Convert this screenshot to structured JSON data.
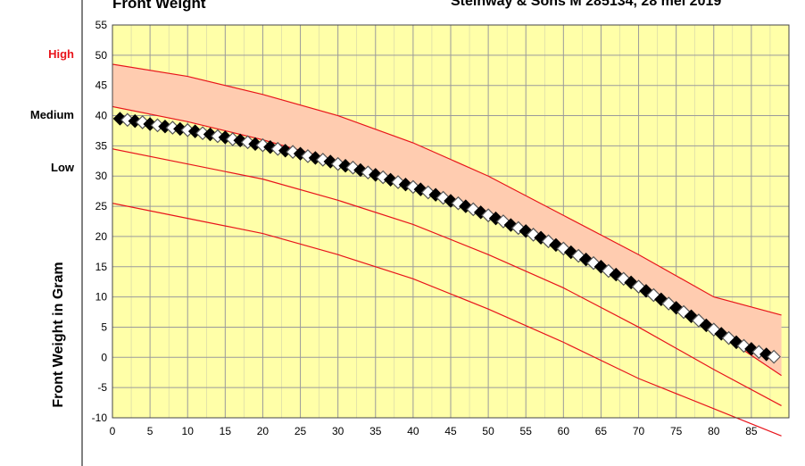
{
  "chart_data": {
    "type": "scatter",
    "title": "Front Weight",
    "subtitle": "Steinway & Sons M 285134, 28 mei 2019",
    "ylabel": "Front Weight in Gram",
    "xlabel": "",
    "xlim": [
      0,
      90
    ],
    "ylim": [
      -10,
      55
    ],
    "x_ticks": [
      0,
      5,
      10,
      15,
      20,
      25,
      30,
      35,
      40,
      45,
      50,
      55,
      60,
      65,
      70,
      75,
      80,
      85
    ],
    "y_ticks": [
      55,
      50,
      45,
      40,
      35,
      30,
      25,
      20,
      15,
      10,
      5,
      0,
      -5,
      -10
    ],
    "grid": true,
    "level_labels": [
      {
        "text": "High",
        "y": 50,
        "color": "#e8141b"
      },
      {
        "text": "Medium",
        "y": 40,
        "color": "#000000"
      },
      {
        "text": "Low",
        "y": 30,
        "color": "#000000"
      }
    ],
    "reference_curves": [
      {
        "name": "upper",
        "x": [
          0,
          10,
          20,
          30,
          40,
          50,
          60,
          70,
          80,
          89
        ],
        "y": [
          48.5,
          46.5,
          43.5,
          40,
          35.5,
          30,
          23.5,
          17,
          10,
          7
        ]
      },
      {
        "name": "medium",
        "x": [
          0,
          10,
          20,
          30,
          40,
          50,
          60,
          70,
          80,
          89
        ],
        "y": [
          41.5,
          39,
          36,
          32.5,
          28.5,
          23.5,
          18,
          11.5,
          4.5,
          -3
        ]
      },
      {
        "name": "low",
        "x": [
          0,
          10,
          20,
          30,
          40,
          50,
          60,
          70,
          80,
          89
        ],
        "y": [
          34.5,
          32,
          29.5,
          26,
          22,
          17,
          11.5,
          5,
          -2,
          -8
        ]
      },
      {
        "name": "lowest",
        "x": [
          0,
          10,
          20,
          30,
          40,
          50,
          60,
          70,
          80,
          89
        ],
        "y": [
          25.5,
          23,
          20.5,
          17,
          13,
          8,
          2.5,
          -3.5,
          -8.5,
          -13
        ]
      }
    ],
    "series": [
      {
        "values": [
          [
            1,
            39.5
          ],
          [
            2,
            39.3
          ],
          [
            3,
            39.1
          ],
          [
            4,
            38.9
          ],
          [
            5,
            38.6
          ],
          [
            6,
            38.4
          ],
          [
            7,
            38.2
          ],
          [
            8,
            38
          ],
          [
            9,
            37.8
          ],
          [
            10,
            37.6
          ],
          [
            11,
            37.4
          ],
          [
            12,
            37.1
          ],
          [
            13,
            36.9
          ],
          [
            14,
            36.6
          ],
          [
            15,
            36.4
          ],
          [
            16,
            36.1
          ],
          [
            17,
            35.9
          ],
          [
            18,
            35.6
          ],
          [
            19,
            35.3
          ],
          [
            20,
            35.1
          ],
          [
            21,
            34.8
          ],
          [
            22,
            34.5
          ],
          [
            23,
            34.2
          ],
          [
            24,
            34
          ],
          [
            25,
            33.7
          ],
          [
            26,
            33.3
          ],
          [
            27,
            33
          ],
          [
            28,
            32.7
          ],
          [
            29,
            32.4
          ],
          [
            30,
            32
          ],
          [
            31,
            31.7
          ],
          [
            32,
            31.4
          ],
          [
            33,
            31
          ],
          [
            34,
            30.6
          ],
          [
            35,
            30.2
          ],
          [
            36,
            29.8
          ],
          [
            37,
            29.4
          ],
          [
            38,
            29
          ],
          [
            39,
            28.6
          ],
          [
            40,
            28.2
          ],
          [
            41,
            27.8
          ],
          [
            42,
            27.3
          ],
          [
            43,
            26.9
          ],
          [
            44,
            26.4
          ],
          [
            45,
            25.9
          ],
          [
            46,
            25.5
          ],
          [
            47,
            25
          ],
          [
            48,
            24.5
          ],
          [
            49,
            24
          ],
          [
            50,
            23.5
          ],
          [
            51,
            23
          ],
          [
            52,
            22.5
          ],
          [
            53,
            21.9
          ],
          [
            54,
            21.4
          ],
          [
            55,
            20.9
          ],
          [
            56,
            20.3
          ],
          [
            57,
            19.8
          ],
          [
            58,
            19.2
          ],
          [
            59,
            18.6
          ],
          [
            60,
            18
          ],
          [
            61,
            17.4
          ],
          [
            62,
            16.8
          ],
          [
            63,
            16.2
          ],
          [
            64,
            15.6
          ],
          [
            65,
            15
          ],
          [
            66,
            14.3
          ],
          [
            67,
            13.7
          ],
          [
            68,
            13
          ],
          [
            69,
            12.4
          ],
          [
            70,
            11.7
          ],
          [
            71,
            11
          ],
          [
            72,
            10.3
          ],
          [
            73,
            9.6
          ],
          [
            74,
            8.9
          ],
          [
            75,
            8.2
          ],
          [
            76,
            7.5
          ],
          [
            77,
            6.8
          ],
          [
            78,
            6.1
          ],
          [
            79,
            5.3
          ],
          [
            80,
            4.6
          ],
          [
            81,
            3.9
          ],
          [
            82,
            3.2
          ],
          [
            83,
            2.5
          ],
          [
            84,
            1.9
          ],
          [
            85,
            1.4
          ],
          [
            86,
            0.9
          ],
          [
            87,
            0.5
          ],
          [
            88,
            0.1
          ]
        ]
      }
    ]
  }
}
